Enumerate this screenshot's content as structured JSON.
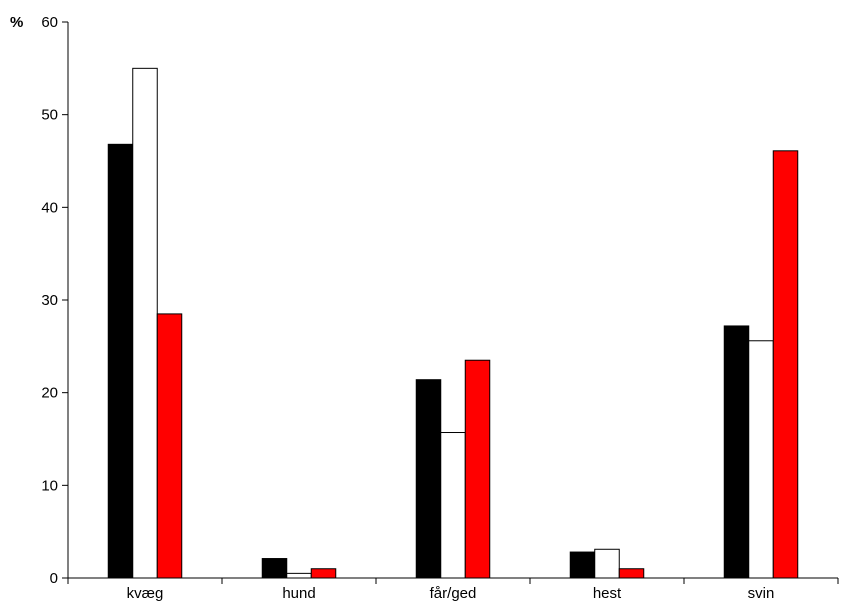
{
  "chart_data": {
    "type": "bar",
    "title": "",
    "xlabel": "",
    "ylabel": "%",
    "ylim": [
      0,
      60
    ],
    "yticks": [
      0,
      10,
      20,
      30,
      40,
      50,
      60
    ],
    "grid": false,
    "legend": "none",
    "categories": [
      "kvæg",
      "hund",
      "får/ged",
      "hest",
      "svin"
    ],
    "series": [
      {
        "color": "#000000",
        "values": [
          46.8,
          2.1,
          21.4,
          2.8,
          27.2
        ]
      },
      {
        "color": "#ffffff",
        "values": [
          55.0,
          0.5,
          15.7,
          3.1,
          25.6
        ]
      },
      {
        "color": "#ff0000",
        "values": [
          28.5,
          1.0,
          23.5,
          1.0,
          46.1
        ]
      }
    ]
  }
}
